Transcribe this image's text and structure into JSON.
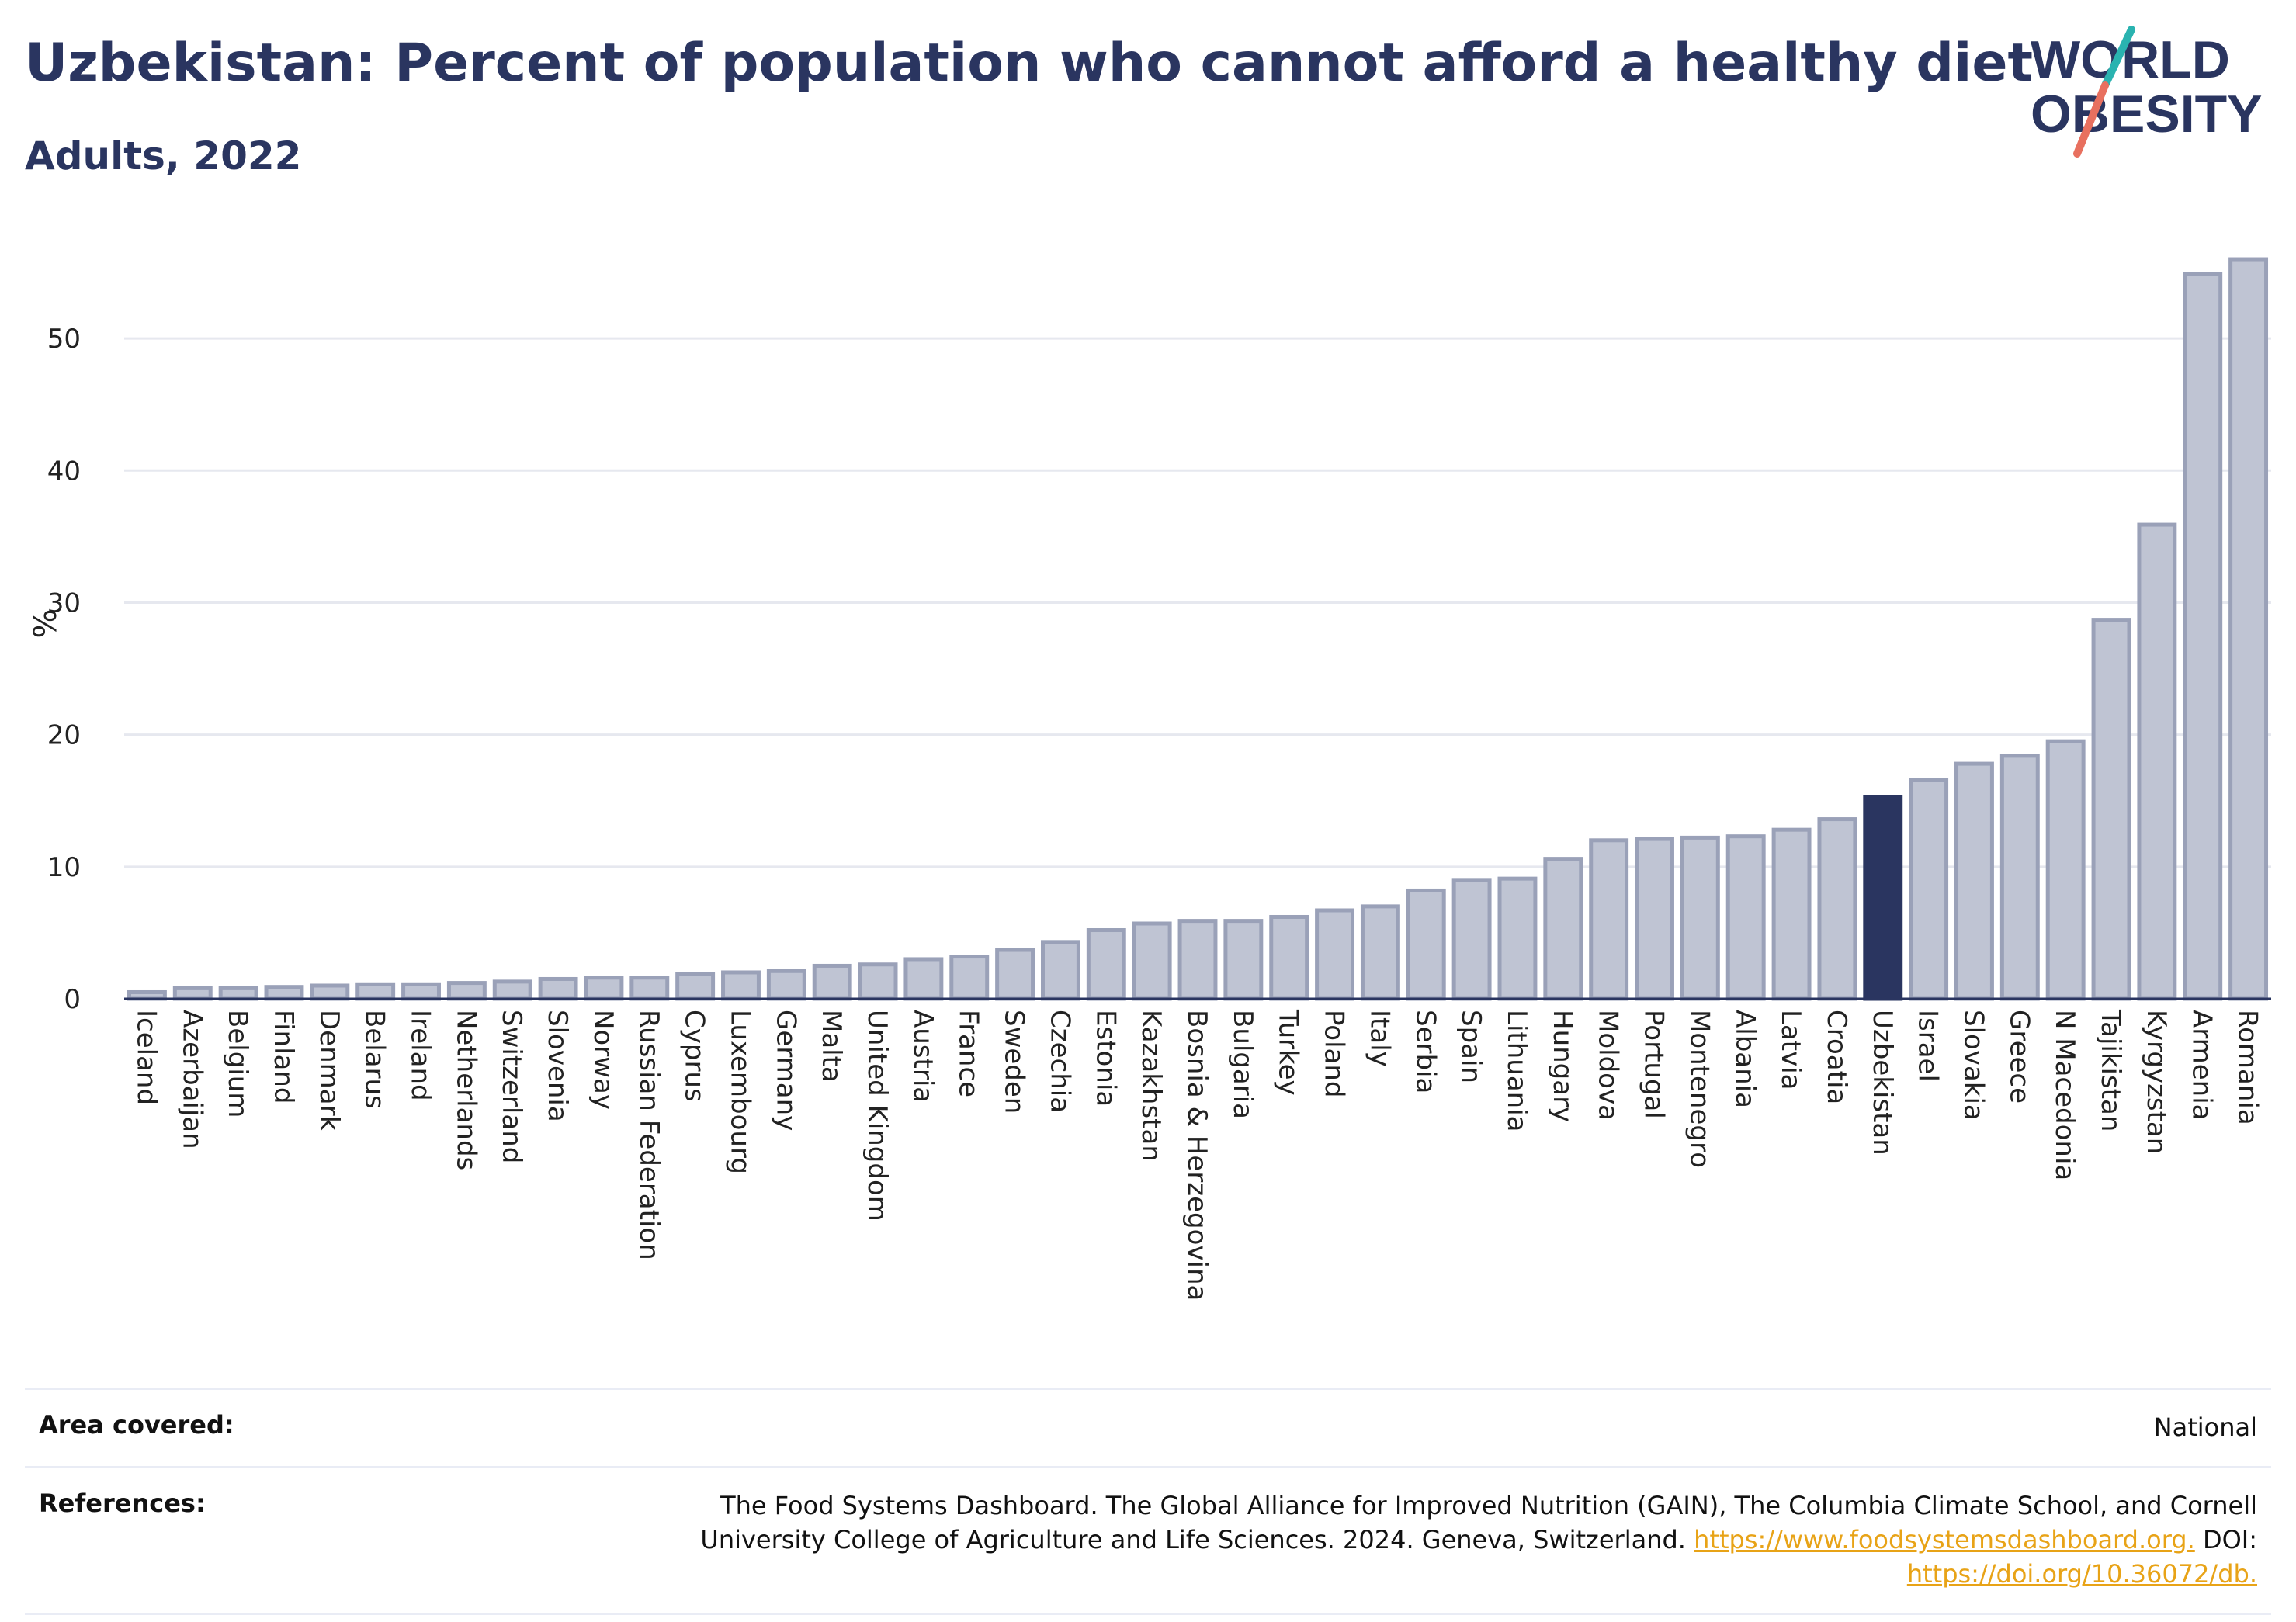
{
  "header": {
    "title": "Uzbekistan: Percent of population who cannot afford a healthy diet",
    "subtitle": "Adults, 2022",
    "logo_line1": "WORLD",
    "logo_line2": "OBESITY"
  },
  "colors": {
    "bar_fill": "#bfc4d3",
    "bar_stroke": "#9aa1b8",
    "highlight": "#2a3560",
    "grid": "#e6e8ef",
    "accent_teal": "#2ab3b0",
    "accent_coral": "#e8705f",
    "link": "#e8a317"
  },
  "chart_data": {
    "type": "bar",
    "title": "Uzbekistan: Percent of population who cannot afford a healthy diet",
    "subtitle": "Adults, 2022",
    "ylabel": "%",
    "xlabel": "",
    "ylim": [
      0,
      58
    ],
    "yticks": [
      0,
      10,
      20,
      30,
      40,
      50
    ],
    "grid": true,
    "highlight": "Uzbekistan",
    "categories": [
      "Iceland",
      "Azerbaijan",
      "Belgium",
      "Finland",
      "Denmark",
      "Belarus",
      "Ireland",
      "Netherlands",
      "Switzerland",
      "Slovenia",
      "Norway",
      "Russian Federation",
      "Cyprus",
      "Luxembourg",
      "Germany",
      "Malta",
      "United Kingdom",
      "Austria",
      "France",
      "Sweden",
      "Czechia",
      "Estonia",
      "Kazakhstan",
      "Bosnia & Herzegovina",
      "Bulgaria",
      "Turkey",
      "Poland",
      "Italy",
      "Serbia",
      "Spain",
      "Lithuania",
      "Hungary",
      "Moldova",
      "Portugal",
      "Montenegro",
      "Albania",
      "Latvia",
      "Croatia",
      "Uzbekistan",
      "Israel",
      "Slovakia",
      "Greece",
      "N Macedonia",
      "Tajikistan",
      "Kyrgyzstan",
      "Armenia",
      "Romania"
    ],
    "values": [
      0.5,
      0.8,
      0.8,
      0.9,
      1.0,
      1.1,
      1.1,
      1.2,
      1.3,
      1.5,
      1.6,
      1.6,
      1.9,
      2.0,
      2.1,
      2.5,
      2.6,
      3.0,
      3.2,
      3.7,
      4.3,
      5.2,
      5.7,
      5.9,
      5.9,
      6.2,
      6.7,
      7.0,
      8.2,
      9.0,
      9.1,
      10.6,
      12.0,
      12.1,
      12.2,
      12.3,
      12.8,
      13.6,
      15.3,
      16.6,
      17.8,
      18.4,
      19.5,
      28.7,
      35.9,
      54.9,
      56.0
    ]
  },
  "footer": {
    "area_label": "Area covered:",
    "area_value": "National",
    "refs_label": "References:",
    "refs_text": "The Food Systems Dashboard. The Global Alliance for Improved Nutrition (GAIN), The Columbia Climate School, and Cornell University College of Agriculture and Life Sciences. 2024. Geneva, Switzerland. ",
    "refs_link1": "https://www.foodsystemsdashboard.org.",
    "refs_doi": " DOI: ",
    "refs_link2": "https://doi.org/10.36072/db."
  }
}
